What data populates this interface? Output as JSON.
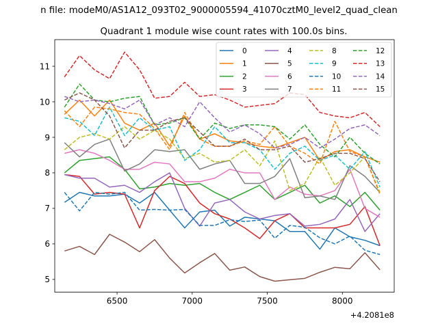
{
  "chart_data": {
    "type": "line",
    "suptitle": "n file: modeM0/AS1A12_093T02_9000005594_41070cztM0_level2_quad_clean",
    "title": "Quadrant 1 module wise count rates with 100.0s bins.",
    "xlabel": "",
    "ylabel": "",
    "x_offset_label": "+4.2081e8",
    "xlim": [
      6085,
      8345
    ],
    "ylim": [
      4.64,
      11.75
    ],
    "xticks": [
      6500,
      7000,
      7500,
      8000
    ],
    "xtick_labels": [
      "6500",
      "7000",
      "7500",
      "8000"
    ],
    "yticks": [
      5,
      6,
      7,
      8,
      9,
      10,
      11
    ],
    "ytick_labels": [
      "5",
      "6",
      "7",
      "8",
      "9",
      "10",
      "11"
    ],
    "legend_position": "upper right",
    "legend_columns": 4,
    "x": [
      6150,
      6250,
      6350,
      6450,
      6550,
      6650,
      6750,
      6850,
      6950,
      7050,
      7150,
      7250,
      7350,
      7450,
      7550,
      7650,
      7750,
      7850,
      7950,
      8050,
      8150,
      8250
    ],
    "series": [
      {
        "name": "0",
        "color": "#1f77b4",
        "dash": "solid",
        "values": [
          7.17,
          7.45,
          7.35,
          7.35,
          7.4,
          7.15,
          7.45,
          6.95,
          6.45,
          6.9,
          6.95,
          6.5,
          6.75,
          6.7,
          6.65,
          6.35,
          6.35,
          5.85,
          6.45,
          6.2,
          6.1,
          5.95
        ]
      },
      {
        "name": "1",
        "color": "#ff7f0e",
        "dash": "solid",
        "values": [
          9.65,
          10.05,
          9.6,
          10.05,
          9.4,
          9.2,
          9.4,
          8.75,
          9.6,
          8.95,
          9.1,
          8.9,
          8.85,
          8.75,
          8.7,
          8.85,
          9.0,
          8.35,
          8.6,
          8.65,
          8.45,
          8.3
        ]
      },
      {
        "name": "2",
        "color": "#2ca02c",
        "dash": "solid",
        "values": [
          8.0,
          8.35,
          8.4,
          8.45,
          8.1,
          7.55,
          7.6,
          7.7,
          7.65,
          7.7,
          7.45,
          7.25,
          7.45,
          7.65,
          7.25,
          7.45,
          7.65,
          7.15,
          7.35,
          7.05,
          7.45,
          6.95
        ]
      },
      {
        "name": "3",
        "color": "#d62728",
        "dash": "solid",
        "values": [
          7.95,
          7.9,
          7.4,
          7.45,
          7.4,
          6.45,
          7.5,
          7.9,
          7.7,
          7.15,
          6.85,
          6.7,
          6.45,
          6.15,
          6.65,
          6.85,
          6.45,
          6.45,
          6.45,
          6.55,
          7.05,
          5.95
        ]
      },
      {
        "name": "4",
        "color": "#9467bd",
        "dash": "solid",
        "values": [
          7.95,
          7.85,
          7.85,
          7.6,
          7.65,
          7.45,
          7.75,
          8.0,
          7.0,
          6.5,
          7.15,
          7.25,
          6.9,
          6.7,
          6.8,
          6.85,
          6.5,
          6.55,
          6.7,
          7.25,
          6.35,
          6.85
        ]
      },
      {
        "name": "5",
        "color": "#8c564b",
        "dash": "solid",
        "values": [
          5.8,
          5.93,
          5.7,
          6.27,
          6.05,
          5.78,
          6.12,
          5.6,
          5.18,
          5.47,
          5.73,
          5.26,
          5.35,
          5.08,
          4.95,
          4.99,
          5.03,
          5.2,
          5.34,
          5.3,
          5.75,
          5.27
        ]
      },
      {
        "name": "6",
        "color": "#e377c2",
        "dash": "solid",
        "values": [
          8.55,
          8.65,
          8.55,
          8.35,
          8.1,
          8.1,
          8.3,
          8.25,
          7.75,
          7.75,
          7.85,
          8.1,
          8.0,
          8.0,
          7.25,
          7.6,
          7.4,
          7.35,
          7.5,
          8.1,
          7.0,
          6.75
        ]
      },
      {
        "name": "7",
        "color": "#7f7f7f",
        "dash": "solid",
        "values": [
          8.85,
          8.45,
          8.8,
          8.95,
          8.05,
          8.25,
          8.65,
          8.6,
          8.65,
          8.1,
          8.25,
          8.35,
          7.7,
          7.7,
          7.9,
          8.4,
          7.3,
          7.35,
          7.25,
          8.2,
          7.9,
          7.45
        ]
      },
      {
        "name": "8",
        "color": "#bcbd22",
        "dash": "dashed",
        "values": [
          8.65,
          9.0,
          9.1,
          8.95,
          9.3,
          8.95,
          9.2,
          8.95,
          8.4,
          8.55,
          8.3,
          8.35,
          8.65,
          8.2,
          8.9,
          7.5,
          7.7,
          8.45,
          7.65,
          8.0,
          8.45,
          7.45
        ]
      },
      {
        "name": "9",
        "color": "#17becf",
        "dash": "dashed",
        "values": [
          9.55,
          9.45,
          9.05,
          9.85,
          9.05,
          9.55,
          9.2,
          9.3,
          8.35,
          8.65,
          9.3,
          8.85,
          8.85,
          8.65,
          8.1,
          8.55,
          8.75,
          8.35,
          8.5,
          8.1,
          8.6,
          7.6
        ]
      },
      {
        "name": "10",
        "color": "#1f77b4",
        "dash": "dashed",
        "values": [
          7.45,
          6.93,
          7.45,
          7.4,
          7.45,
          6.95,
          6.97,
          6.95,
          6.97,
          6.52,
          6.52,
          6.68,
          6.63,
          6.67,
          6.16,
          6.52,
          6.47,
          6.17,
          6.0,
          6.22,
          5.82,
          5.7
        ]
      },
      {
        "name": "11",
        "color": "#ff7f0e",
        "dash": "dashed",
        "values": [
          9.75,
          9.3,
          9.85,
          9.8,
          9.7,
          9.65,
          9.25,
          8.65,
          9.7,
          8.95,
          8.75,
          8.75,
          8.9,
          8.8,
          9.3,
          8.75,
          8.55,
          8.25,
          9.45,
          8.6,
          8.45,
          7.4
        ]
      },
      {
        "name": "12",
        "color": "#2ca02c",
        "dash": "dashed",
        "values": [
          9.85,
          10.5,
          10.05,
          10.0,
          10.1,
          10.15,
          9.35,
          9.4,
          9.55,
          8.95,
          9.4,
          9.25,
          9.35,
          9.35,
          9.3,
          8.95,
          9.35,
          8.8,
          8.45,
          9.0,
          8.55,
          8.25
        ]
      },
      {
        "name": "13",
        "color": "#d62728",
        "dash": "dashed",
        "values": [
          10.7,
          11.3,
          10.9,
          10.65,
          11.4,
          10.9,
          10.1,
          10.15,
          10.55,
          10.15,
          10.2,
          10.05,
          9.85,
          9.9,
          9.95,
          10.25,
          10.2,
          9.7,
          9.6,
          9.55,
          9.7,
          9.3
        ]
      },
      {
        "name": "14",
        "color": "#9467bd",
        "dash": "dashed",
        "values": [
          10.15,
          10.0,
          10.05,
          9.95,
          9.8,
          10.05,
          9.35,
          9.55,
          9.3,
          10.0,
          9.55,
          9.15,
          9.35,
          9.1,
          8.7,
          8.8,
          9.0,
          8.7,
          8.95,
          9.25,
          9.35,
          9.05
        ]
      },
      {
        "name": "15",
        "color": "#8c564b",
        "dash": "dashed",
        "values": [
          10.05,
          10.25,
          10.05,
          9.6,
          8.7,
          9.2,
          9.2,
          9.45,
          9.55,
          9.15,
          8.75,
          8.75,
          8.95,
          8.65,
          8.65,
          8.75,
          8.3,
          8.4,
          8.55,
          8.55,
          8.4,
          7.75
        ]
      }
    ]
  }
}
